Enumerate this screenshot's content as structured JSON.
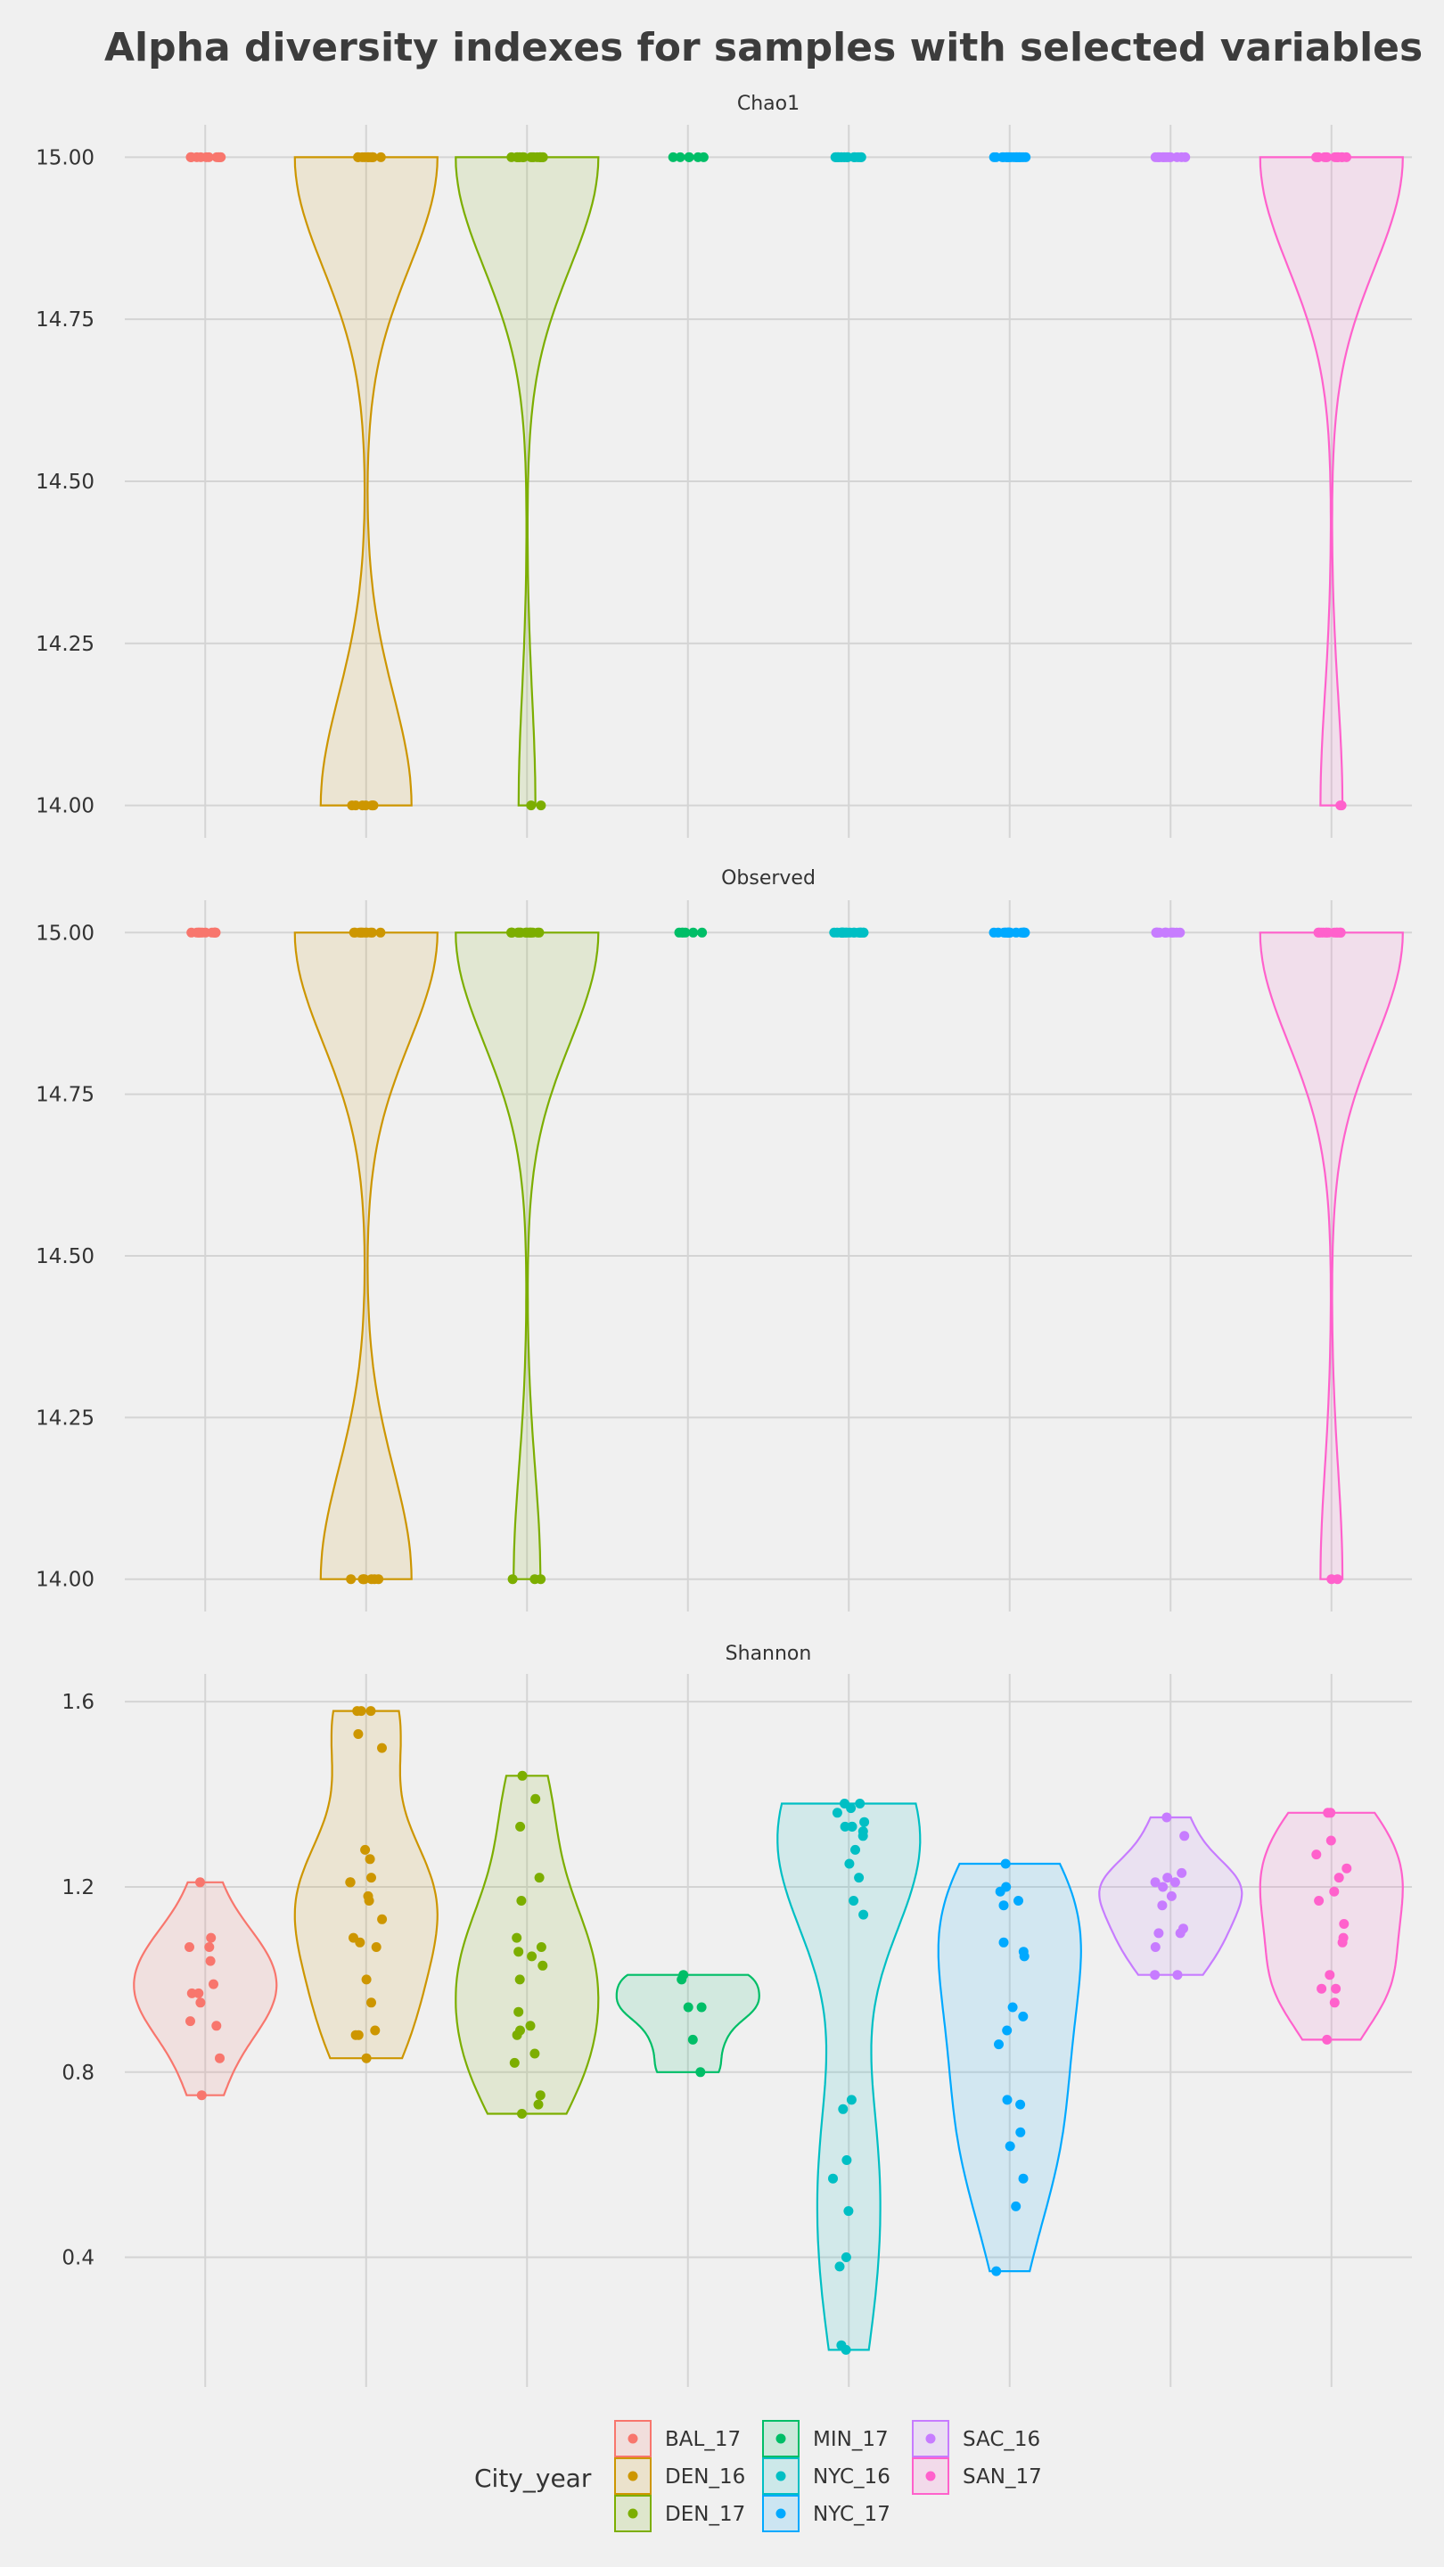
{
  "title": "Alpha diversity indexes for samples with selected variables",
  "legend": {
    "title": "City_year",
    "position": "bottom",
    "items": [
      {
        "name": "BAL_17",
        "color": "#F8766D"
      },
      {
        "name": "DEN_16",
        "color": "#CD9600"
      },
      {
        "name": "DEN_17",
        "color": "#7CAE00"
      },
      {
        "name": "MIN_17",
        "color": "#00BE67"
      },
      {
        "name": "NYC_16",
        "color": "#00BFC4"
      },
      {
        "name": "NYC_17",
        "color": "#00A9FF"
      },
      {
        "name": "SAC_16",
        "color": "#C77CFF"
      },
      {
        "name": "SAN_17",
        "color": "#FF61CC"
      }
    ]
  },
  "chart_data": {
    "type": "violin",
    "grid": true,
    "categories": [
      "BAL_17",
      "DEN_16",
      "DEN_17",
      "MIN_17",
      "NYC_16",
      "NYC_17",
      "SAC_16",
      "SAN_17"
    ],
    "panels": [
      {
        "name": "Chao1",
        "ylim": [
          13.95,
          15.05
        ],
        "yticks": [
          "15.00",
          "14.75",
          "14.50",
          "14.25",
          "14.00"
        ],
        "series": [
          {
            "name": "BAL_17",
            "range": [
              15.0,
              15.0
            ],
            "points": [
              15.0,
              15.0,
              15.0,
              15.0,
              15.0,
              15.0,
              15.0,
              15.0,
              15.0,
              15.0,
              15.0,
              15.0
            ]
          },
          {
            "name": "DEN_16",
            "range": [
              14.0,
              15.0
            ],
            "points": [
              15.0,
              15.0,
              15.0,
              15.0,
              15.0,
              15.0,
              15.0,
              15.0,
              15.0,
              15.0,
              15.0,
              14.0,
              14.0,
              14.0,
              14.0,
              14.0,
              14.0,
              14.0
            ]
          },
          {
            "name": "DEN_17",
            "range": [
              14.0,
              15.0
            ],
            "points": [
              15.0,
              15.0,
              15.0,
              15.0,
              15.0,
              15.0,
              15.0,
              15.0,
              15.0,
              15.0,
              15.0,
              15.0,
              15.0,
              15.0,
              15.0,
              15.0,
              15.0,
              14.0,
              14.0
            ]
          },
          {
            "name": "MIN_17",
            "range": [
              15.0,
              15.0
            ],
            "points": [
              15.0,
              15.0,
              15.0,
              15.0,
              15.0,
              15.0
            ]
          },
          {
            "name": "NYC_16",
            "range": [
              15.0,
              15.0
            ],
            "points": [
              15.0,
              15.0,
              15.0,
              15.0,
              15.0,
              15.0,
              15.0,
              15.0,
              15.0,
              15.0,
              15.0,
              15.0,
              15.0,
              15.0,
              15.0,
              15.0,
              15.0,
              15.0,
              15.0,
              15.0
            ]
          },
          {
            "name": "NYC_17",
            "range": [
              15.0,
              15.0
            ],
            "points": [
              15.0,
              15.0,
              15.0,
              15.0,
              15.0,
              15.0,
              15.0,
              15.0,
              15.0,
              15.0,
              15.0,
              15.0,
              15.0,
              15.0,
              15.0,
              15.0,
              15.0,
              15.0
            ]
          },
          {
            "name": "SAC_16",
            "range": [
              15.0,
              15.0
            ],
            "points": [
              15.0,
              15.0,
              15.0,
              15.0,
              15.0,
              15.0,
              15.0,
              15.0,
              15.0,
              15.0,
              15.0,
              15.0,
              15.0
            ]
          },
          {
            "name": "SAN_17",
            "range": [
              14.0,
              15.0
            ],
            "points": [
              15.0,
              15.0,
              15.0,
              15.0,
              15.0,
              15.0,
              15.0,
              15.0,
              15.0,
              15.0,
              15.0,
              15.0,
              15.0,
              14.0,
              14.0
            ]
          }
        ]
      },
      {
        "name": "Observed",
        "ylim": [
          13.95,
          15.05
        ],
        "yticks": [
          "15.00",
          "14.75",
          "14.50",
          "14.25",
          "14.00"
        ],
        "series": [
          {
            "name": "BAL_17",
            "range": [
              15.0,
              15.0
            ],
            "points": [
              15.0,
              15.0,
              15.0,
              15.0,
              15.0,
              15.0,
              15.0,
              15.0,
              15.0,
              15.0,
              15.0,
              15.0
            ]
          },
          {
            "name": "DEN_16",
            "range": [
              14.0,
              15.0
            ],
            "points": [
              15.0,
              15.0,
              15.0,
              15.0,
              15.0,
              15.0,
              15.0,
              15.0,
              15.0,
              15.0,
              15.0,
              14.0,
              14.0,
              14.0,
              14.0,
              14.0,
              14.0,
              14.0
            ]
          },
          {
            "name": "DEN_17",
            "range": [
              14.0,
              15.0
            ],
            "points": [
              15.0,
              15.0,
              15.0,
              15.0,
              15.0,
              15.0,
              15.0,
              15.0,
              15.0,
              15.0,
              15.0,
              15.0,
              15.0,
              15.0,
              15.0,
              15.0,
              14.0,
              14.0,
              14.0
            ]
          },
          {
            "name": "MIN_17",
            "range": [
              15.0,
              15.0
            ],
            "points": [
              15.0,
              15.0,
              15.0,
              15.0,
              15.0,
              15.0
            ]
          },
          {
            "name": "NYC_16",
            "range": [
              15.0,
              15.0
            ],
            "points": [
              15.0,
              15.0,
              15.0,
              15.0,
              15.0,
              15.0,
              15.0,
              15.0,
              15.0,
              15.0,
              15.0,
              15.0,
              15.0,
              15.0,
              15.0,
              15.0,
              15.0,
              15.0,
              15.0,
              15.0
            ]
          },
          {
            "name": "NYC_17",
            "range": [
              15.0,
              15.0
            ],
            "points": [
              15.0,
              15.0,
              15.0,
              15.0,
              15.0,
              15.0,
              15.0,
              15.0,
              15.0,
              15.0,
              15.0,
              15.0,
              15.0,
              15.0,
              15.0,
              15.0,
              15.0,
              15.0
            ]
          },
          {
            "name": "SAC_16",
            "range": [
              15.0,
              15.0
            ],
            "points": [
              15.0,
              15.0,
              15.0,
              15.0,
              15.0,
              15.0,
              15.0,
              15.0,
              15.0,
              15.0,
              15.0,
              15.0,
              15.0
            ]
          },
          {
            "name": "SAN_17",
            "range": [
              14.0,
              15.0
            ],
            "points": [
              15.0,
              15.0,
              15.0,
              15.0,
              15.0,
              15.0,
              15.0,
              15.0,
              15.0,
              15.0,
              15.0,
              15.0,
              15.0,
              14.0,
              14.0
            ]
          }
        ]
      },
      {
        "name": "Shannon",
        "ylim": [
          0.12,
          1.66
        ],
        "yticks": [
          "1.6",
          "1.2",
          "0.8",
          "0.4"
        ],
        "series": [
          {
            "name": "BAL_17",
            "range": [
              0.75,
              1.21
            ],
            "points": [
              1.21,
              1.09,
              1.07,
              1.07,
              1.04,
              0.99,
              0.97,
              0.97,
              0.95,
              0.91,
              0.9,
              0.83,
              0.75
            ]
          },
          {
            "name": "DEN_16",
            "range": [
              0.83,
              1.58
            ],
            "points": [
              1.58,
              1.58,
              1.58,
              1.53,
              1.5,
              1.28,
              1.26,
              1.22,
              1.21,
              1.21,
              1.18,
              1.17,
              1.13,
              1.09,
              1.08,
              1.07,
              1.0,
              0.95,
              0.89,
              0.88,
              0.88,
              0.83
            ]
          },
          {
            "name": "DEN_17",
            "range": [
              0.71,
              1.44
            ],
            "points": [
              1.44,
              1.39,
              1.33,
              1.22,
              1.17,
              1.09,
              1.07,
              1.06,
              1.05,
              1.03,
              1.0,
              0.93,
              0.9,
              0.89,
              0.88,
              0.84,
              0.82,
              0.75,
              0.73,
              0.71
            ]
          },
          {
            "name": "MIN_17",
            "range": [
              0.8,
              1.01
            ],
            "points": [
              1.01,
              1.0,
              0.94,
              0.94,
              0.87,
              0.8
            ]
          },
          {
            "name": "NYC_16",
            "range": [
              0.2,
              1.38
            ],
            "points": [
              1.38,
              1.38,
              1.37,
              1.36,
              1.34,
              1.33,
              1.33,
              1.33,
              1.32,
              1.31,
              1.28,
              1.25,
              1.22,
              1.17,
              1.14,
              0.74,
              0.72,
              0.61,
              0.57,
              0.5,
              0.4,
              0.38,
              0.21,
              0.2
            ]
          },
          {
            "name": "NYC_17",
            "range": [
              0.37,
              1.25
            ],
            "points": [
              1.25,
              1.2,
              1.19,
              1.17,
              1.16,
              1.08,
              1.06,
              1.05,
              0.94,
              0.92,
              0.89,
              0.86,
              0.74,
              0.73,
              0.67,
              0.64,
              0.57,
              0.51,
              0.37
            ]
          },
          {
            "name": "SAC_16",
            "range": [
              1.01,
              1.35
            ],
            "points": [
              1.35,
              1.31,
              1.23,
              1.22,
              1.21,
              1.21,
              1.2,
              1.18,
              1.16,
              1.11,
              1.1,
              1.1,
              1.07,
              1.01,
              1.01
            ]
          },
          {
            "name": "SAN_17",
            "range": [
              0.87,
              1.36
            ],
            "points": [
              1.36,
              1.36,
              1.3,
              1.27,
              1.24,
              1.22,
              1.19,
              1.17,
              1.12,
              1.09,
              1.08,
              1.01,
              0.98,
              0.98,
              0.95,
              0.87
            ]
          }
        ]
      }
    ]
  }
}
